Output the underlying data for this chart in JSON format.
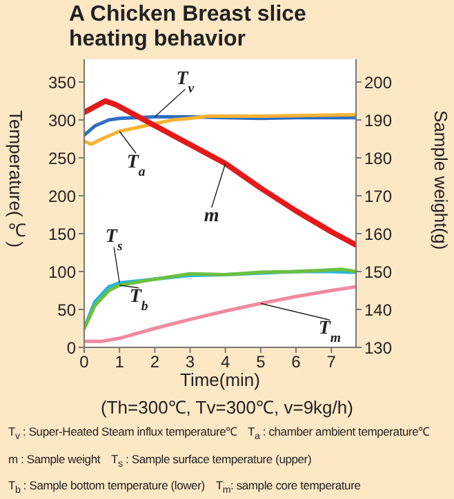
{
  "chart_data": {
    "type": "line",
    "title": "A Chicken Breast slice heating behavior",
    "xlabel": "Time(min)",
    "ylabel": "Temperature(℃)",
    "y2label": "Sample weight(g)",
    "xlim": [
      0,
      7.7
    ],
    "xticks": [
      0,
      1,
      2,
      3,
      4,
      5,
      6,
      7
    ],
    "ylim": [
      0,
      380
    ],
    "yticks": [
      0,
      50,
      100,
      150,
      200,
      250,
      300,
      350
    ],
    "y2lim": [
      130,
      206
    ],
    "y2ticks": [
      130,
      140,
      150,
      160,
      170,
      180,
      190,
      200
    ],
    "marker": "none",
    "line_style": "solid",
    "series": [
      {
        "name": "T$_{v}$",
        "color": "#2f6fc4",
        "x": [
          0,
          0.3,
          0.7,
          1,
          2,
          3,
          4,
          5,
          6,
          7,
          7.7
        ],
        "values": [
          280,
          292,
          300,
          302,
          304,
          304,
          303,
          302,
          303,
          303,
          303
        ]
      },
      {
        "name": "T$_{a}$",
        "color": "#f5b335",
        "x": [
          0,
          0.2,
          0.5,
          1,
          1.5,
          2,
          2.5,
          3,
          3.5,
          5,
          7.7
        ],
        "values": [
          272,
          268,
          275,
          285,
          290,
          295,
          300,
          302,
          305,
          305,
          307
        ]
      },
      {
        "name": "m",
        "color": "#e41a1a",
        "axis": "y2",
        "x": [
          0,
          0.3,
          0.6,
          0.9,
          2,
          3,
          4,
          5,
          6,
          7,
          7.7
        ],
        "values": [
          192,
          193.5,
          195,
          194,
          188.5,
          183.5,
          178.5,
          172,
          166,
          160.5,
          157
        ]
      },
      {
        "name": "T$_{s}$",
        "color": "#26b5e0",
        "x": [
          0,
          0.3,
          0.7,
          1,
          2,
          3,
          4,
          5,
          6,
          7,
          7.7
        ],
        "values": [
          25,
          60,
          80,
          85,
          90,
          95,
          96,
          98,
          100,
          100,
          99
        ]
      },
      {
        "name": "T$_{b}$",
        "color": "#6cc040",
        "x": [
          0,
          0.3,
          0.7,
          1,
          2,
          3,
          4,
          5,
          6,
          7.3,
          7.7
        ],
        "values": [
          25,
          55,
          75,
          82,
          90,
          97,
          96,
          99,
          100,
          103,
          100
        ]
      },
      {
        "name": "T$_{m}$",
        "color": "#f08aa0",
        "x": [
          0,
          0.5,
          1,
          2,
          3,
          4,
          5,
          6,
          7,
          7.7
        ],
        "values": [
          8,
          8,
          12,
          25,
          37,
          48,
          58,
          67,
          75,
          80
        ]
      }
    ],
    "annotations": [
      "(Th=300℃, Tv=300℃, v=9kg/h)",
      "T$_{v}$ : Super-Heated Steam influx temperature℃",
      "T$_{a}$ : chamber ambient temperature℃",
      "m : Sample weight",
      "T$_{s}$ : Sample surface temperature (upper)",
      "T$_{b}$ : Sample bottom temperature (lower)",
      "T$_{m}$: sample core temperature"
    ]
  }
}
